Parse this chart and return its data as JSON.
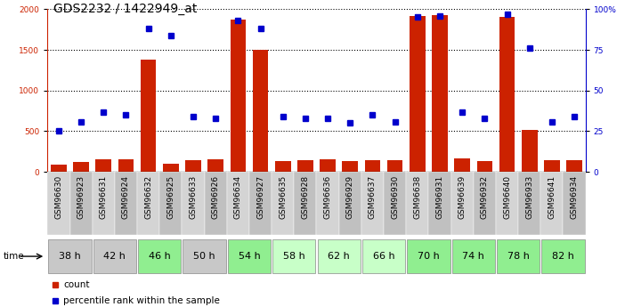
{
  "title": "GDS2232 / 1422949_at",
  "samples": [
    "GSM96630",
    "GSM96923",
    "GSM96631",
    "GSM96924",
    "GSM96632",
    "GSM96925",
    "GSM96633",
    "GSM96926",
    "GSM96634",
    "GSM96927",
    "GSM96635",
    "GSM96928",
    "GSM96636",
    "GSM96929",
    "GSM96637",
    "GSM96930",
    "GSM96638",
    "GSM96931",
    "GSM96639",
    "GSM96932",
    "GSM96640",
    "GSM96933",
    "GSM96641",
    "GSM96934"
  ],
  "counts": [
    90,
    120,
    150,
    155,
    1380,
    100,
    140,
    150,
    1870,
    1500,
    130,
    145,
    150,
    130,
    145,
    140,
    1920,
    1930,
    165,
    130,
    1900,
    520,
    140,
    140
  ],
  "percentile": [
    25,
    31,
    37,
    35,
    88,
    84,
    34,
    33,
    93,
    88,
    34,
    33,
    33,
    30,
    35,
    31,
    95,
    96,
    37,
    33,
    97,
    76,
    31,
    34
  ],
  "time_groups": [
    {
      "label": "38 h",
      "start": 0,
      "end": 2,
      "color": "#c8c8c8"
    },
    {
      "label": "42 h",
      "start": 2,
      "end": 4,
      "color": "#c8c8c8"
    },
    {
      "label": "46 h",
      "start": 4,
      "end": 6,
      "color": "#90ee90"
    },
    {
      "label": "50 h",
      "start": 6,
      "end": 8,
      "color": "#c8c8c8"
    },
    {
      "label": "54 h",
      "start": 8,
      "end": 10,
      "color": "#90ee90"
    },
    {
      "label": "58 h",
      "start": 10,
      "end": 12,
      "color": "#c8ffc8"
    },
    {
      "label": "62 h",
      "start": 12,
      "end": 14,
      "color": "#c8ffc8"
    },
    {
      "label": "66 h",
      "start": 14,
      "end": 16,
      "color": "#c8ffc8"
    },
    {
      "label": "70 h",
      "start": 16,
      "end": 18,
      "color": "#90ee90"
    },
    {
      "label": "74 h",
      "start": 18,
      "end": 20,
      "color": "#90ee90"
    },
    {
      "label": "78 h",
      "start": 20,
      "end": 22,
      "color": "#90ee90"
    },
    {
      "label": "82 h",
      "start": 22,
      "end": 24,
      "color": "#90ee90"
    }
  ],
  "sample_bg_even": "#d4d4d4",
  "sample_bg_odd": "#c0c0c0",
  "bar_color": "#cc2200",
  "dot_color": "#0000cc",
  "left_ylim": [
    0,
    2000
  ],
  "right_ylim": [
    0,
    100
  ],
  "left_yticks": [
    0,
    500,
    1000,
    1500,
    2000
  ],
  "right_yticks": [
    0,
    25,
    50,
    75,
    100
  ],
  "right_yticklabels": [
    "0",
    "25",
    "50",
    "75",
    "100%"
  ],
  "tick_fontsize": 6.5,
  "title_fontsize": 10,
  "legend_fontsize": 7.5,
  "time_fontsize": 8
}
